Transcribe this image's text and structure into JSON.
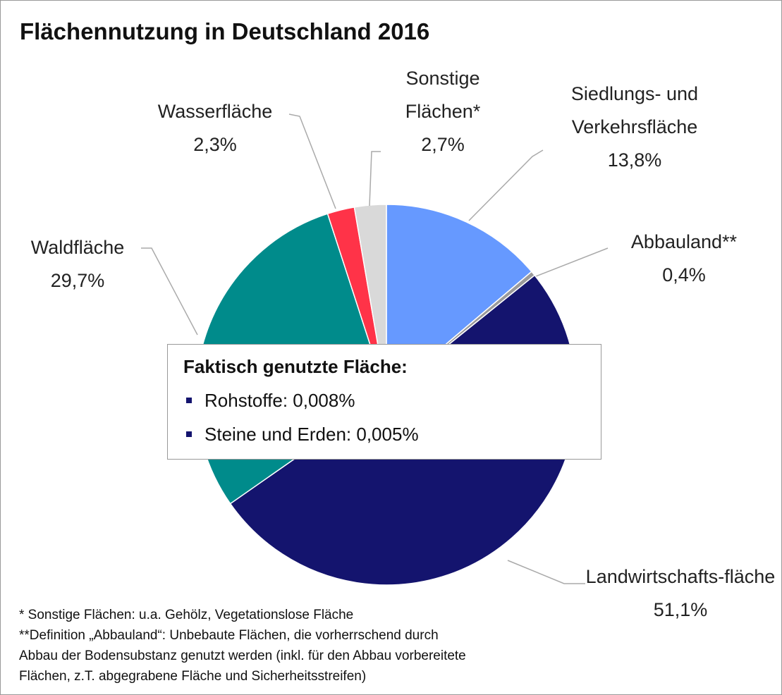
{
  "chart_data": {
    "type": "pie",
    "title": "Flächennutzung in Deutschland 2016",
    "categories": [
      "Siedlungs- und Verkehrsfläche",
      "Abbauland**",
      "Landwirtschafts-fläche",
      "Waldfläche",
      "Wasserfläche",
      "Sonstige Flächen*"
    ],
    "values": [
      13.8,
      0.4,
      51.1,
      29.7,
      2.3,
      2.7
    ],
    "value_labels": [
      "13,8%",
      "0,4%",
      "51,1%",
      "29,7%",
      "2,3%",
      "2,7%"
    ],
    "colors": [
      "#6699ff",
      "#9a9a9a",
      "#14146e",
      "#008b8b",
      "#ff3348",
      "#d9d9d9"
    ],
    "box": {
      "title": "Faktisch genutzte Fläche:",
      "items": [
        "Rohstoffe: 0,008%",
        "Steine und Erden: 0,005%"
      ]
    },
    "footnotes": [
      "* Sonstige Flächen: u.a. Gehölz, Vegetationslose Fläche",
      "**Definition „Abbauland“: Unbebaute Flächen, die vorherrschend durch",
      "Abbau der Bodensubstanz genutzt werden (inkl. für den Abbau vorbereitete",
      "Flächen, z.T. abgegrabene Fläche und Sicherheitsstreifen)"
    ]
  }
}
